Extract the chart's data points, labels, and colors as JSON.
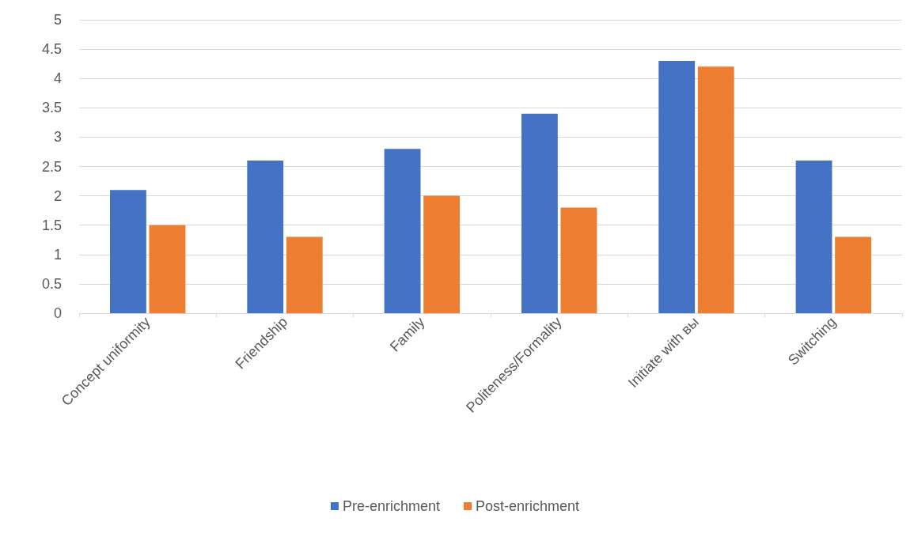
{
  "chart_data": {
    "type": "bar",
    "categories": [
      "Concept uniformity",
      "Friendship",
      "Family",
      "Politeness/Formality",
      "Initiate with вы",
      "Switching"
    ],
    "series": [
      {
        "name": "Pre-enrichment",
        "color": "#4472c4",
        "values": [
          2.1,
          2.6,
          2.8,
          3.4,
          4.3,
          2.6
        ]
      },
      {
        "name": "Post-enrichment",
        "color": "#ed7d31",
        "values": [
          1.5,
          1.3,
          2.0,
          1.8,
          4.2,
          1.3
        ]
      }
    ],
    "ylim": [
      0,
      5
    ],
    "yticks": [
      0,
      0.5,
      1,
      1.5,
      2,
      2.5,
      3,
      3.5,
      4,
      4.5,
      5
    ],
    "grid": "y",
    "legend": "bottom"
  }
}
